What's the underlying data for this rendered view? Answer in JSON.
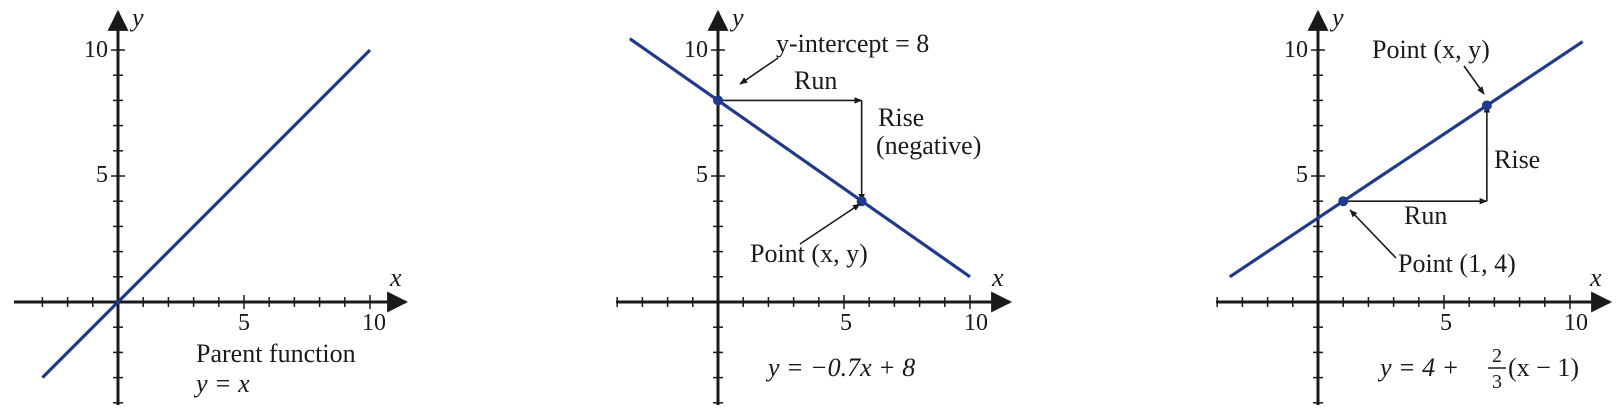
{
  "colors": {
    "line": "#1f3a8a",
    "axis": "#1a1a1a"
  },
  "chart_data": [
    {
      "type": "line",
      "xlabel": "x",
      "ylabel": "y",
      "x_ticks": [
        "5",
        "10"
      ],
      "y_ticks": [
        "5",
        "10"
      ],
      "xlim": [
        -3,
        11
      ],
      "ylim": [
        -4,
        11
      ],
      "series": [
        {
          "x": [
            -3,
            10
          ],
          "y": [
            -3,
            10
          ]
        }
      ],
      "annotations": [
        "Parent function",
        "y = x"
      ]
    },
    {
      "type": "line",
      "xlabel": "x",
      "ylabel": "y",
      "x_ticks": [
        "5",
        "10"
      ],
      "y_ticks": [
        "5",
        "10"
      ],
      "xlim": [
        -4,
        11
      ],
      "ylim": [
        -4,
        11
      ],
      "series": [
        {
          "x": [
            -3.5,
            10
          ],
          "y": [
            10.45,
            1
          ]
        }
      ],
      "points": [
        {
          "x": 0,
          "y": 8
        },
        {
          "x": 5.7,
          "y": 4
        }
      ],
      "run": {
        "from": [
          0,
          8
        ],
        "to": [
          5.7,
          8
        ]
      },
      "rise": {
        "from": [
          5.7,
          8
        ],
        "to": [
          5.7,
          4
        ]
      },
      "annotations": {
        "intercept": "y-intercept = 8",
        "run": "Run",
        "rise1": "Rise",
        "rise2": "(negative)",
        "point": "Point (x, y)",
        "equation": "y = −0.7x + 8"
      }
    },
    {
      "type": "line",
      "xlabel": "x",
      "ylabel": "y",
      "x_ticks": [
        "5",
        "10"
      ],
      "y_ticks": [
        "5",
        "10"
      ],
      "xlim": [
        -4,
        11
      ],
      "ylim": [
        -4,
        11
      ],
      "series": [
        {
          "x": [
            -3.5,
            10.5
          ],
          "y": [
            1,
            10.33
          ]
        }
      ],
      "points": [
        {
          "x": 1,
          "y": 4
        },
        {
          "x": 6.7,
          "y": 7.8
        }
      ],
      "run": {
        "from": [
          1,
          4
        ],
        "to": [
          6.7,
          4
        ]
      },
      "rise": {
        "from": [
          6.7,
          4
        ],
        "to": [
          6.7,
          7.8
        ]
      },
      "annotations": {
        "pointxy": "Point (x, y)",
        "rise": "Rise",
        "run": "Run",
        "point14": "Point (1, 4)",
        "eq_left": "y = 4 + ",
        "eq_num": "2",
        "eq_den": "3",
        "eq_right": "(x − 1)"
      }
    }
  ]
}
